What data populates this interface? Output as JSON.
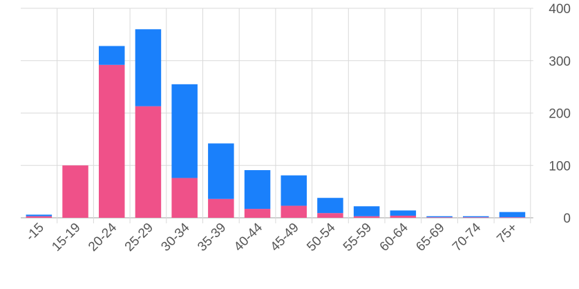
{
  "chart_data": {
    "type": "bar",
    "stacked": true,
    "categories": [
      "-15",
      "15-19",
      "20-24",
      "25-29",
      "30-34",
      "35-39",
      "40-44",
      "45-49",
      "50-54",
      "55-59",
      "60-64",
      "65-69",
      "70-74",
      "75+"
    ],
    "series": [
      {
        "color": "#ef5189",
        "values": [
          3,
          100,
          292,
          213,
          76,
          36,
          17,
          23,
          9,
          3,
          4,
          1,
          1,
          1
        ]
      },
      {
        "color": "#1a80fb",
        "values": [
          3,
          0,
          36,
          147,
          179,
          106,
          74,
          58,
          29,
          19,
          10,
          2,
          2,
          10
        ]
      }
    ],
    "ylim": [
      0,
      400
    ],
    "yticks": [
      0,
      100,
      200,
      300,
      400
    ],
    "yaxis_side": "right",
    "grid": true,
    "legend": "none",
    "title": "",
    "xlabel": "",
    "ylabel": ""
  }
}
